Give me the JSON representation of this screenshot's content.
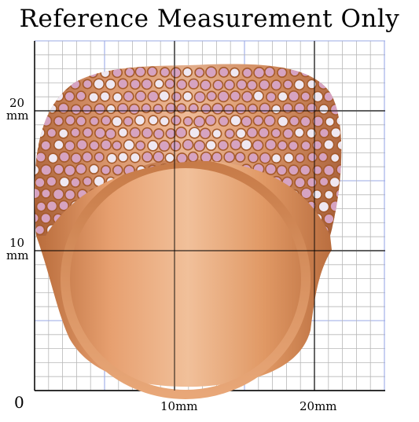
{
  "title": "Reference Measurement Only",
  "axis": {
    "origin": "0",
    "y_labels": [
      {
        "num": "20",
        "unit": "mm"
      },
      {
        "num": "10",
        "unit": "mm"
      }
    ],
    "x_labels": [
      "10mm",
      "20mm"
    ]
  },
  "image": {
    "subject": "rose gold pavé ring with pink and white stones",
    "colors": {
      "gold": "#d48b57",
      "gold_dark": "#a55a2b",
      "stone_pink": "#d6a3c1",
      "stone_white": "#efe8f2",
      "grid_minor": "#b8b8b8",
      "grid_blue": "#9aa9e6",
      "grid_major": "#000000"
    }
  }
}
